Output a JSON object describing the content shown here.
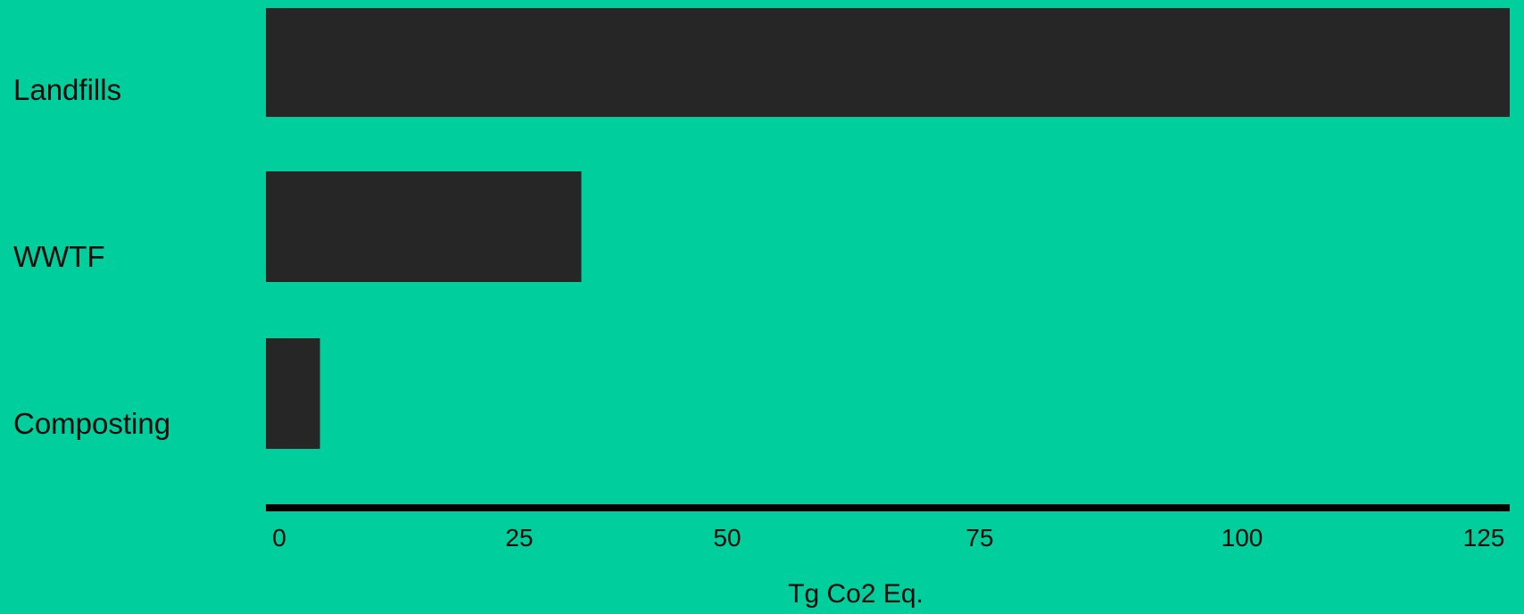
{
  "colors": {
    "background": "#00CE9D",
    "bar": "#262626",
    "axis": "#000000",
    "text": "#0a0a0a"
  },
  "chart_data": {
    "type": "bar",
    "orientation": "horizontal",
    "categories": [
      "Landfills",
      "WWTF",
      "Composting"
    ],
    "values": [
      138,
      35,
      6
    ],
    "title": "",
    "xlabel": "Tg Co2 Eq.",
    "ylabel": "",
    "xlim": [
      0,
      138
    ],
    "x_ticks": [
      0,
      25,
      50,
      75,
      100,
      125
    ],
    "grid": false,
    "legend": "none"
  }
}
